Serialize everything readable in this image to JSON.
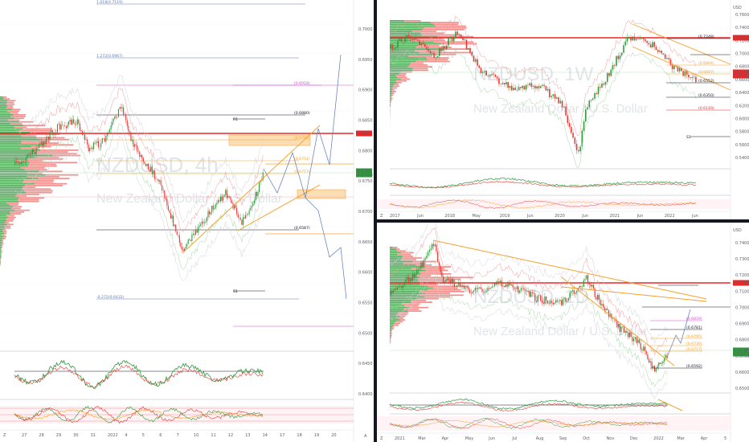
{
  "colors": {
    "bull": "#26a69a",
    "bear": "#ef5350",
    "green_candle": "#2e9a3a",
    "red_candle": "#e53935",
    "orange": "#f7a02c",
    "red_line": "#ef2525",
    "blue_line": "#5b79b8",
    "magenta": "#d44fd4",
    "osc_green": "#2e9a3a",
    "osc_red": "#e53935"
  },
  "chart_data": [
    {
      "type": "candlestick",
      "panel": "left",
      "watermark_symbol": "NZDUSD, 4h",
      "watermark_name": "New Zealand Dollar / U.S. Dollar",
      "price_range": [
        0.635,
        0.7075
      ],
      "price_ticks": [
        "0.7000",
        "0.6950",
        "0.6900",
        "0.6850",
        "0.6800",
        "0.6750",
        "0.6700",
        "0.6650",
        "0.6600",
        "0.6550",
        "0.6500",
        "0.6450",
        "0.6400"
      ],
      "levels": [
        {
          "label": "1.618(0.7119)",
          "price": 0.7119,
          "color": "#5b79b8"
        },
        {
          "label": "1.272(0.6967)",
          "price": 0.6967,
          "color": "#5b79b8"
        },
        {
          "label": "(0.6918)",
          "price": 0.6918,
          "color": "#d44fd4"
        },
        {
          "label": "(0.6880)",
          "price": 0.688,
          "color": "#131722"
        },
        {
          "label": "R1",
          "price": 0.686,
          "color": "#131722"
        },
        {
          "label": "(0.6794)",
          "price": 0.6794,
          "color": "#f7a02c"
        },
        {
          "label": "(0.6751)",
          "price": 0.6751,
          "color": "#f7a02c"
        },
        {
          "label": "(0.6717)",
          "price": 0.6717,
          "color": "#f7a02c"
        },
        {
          "label": "(0.6587)",
          "price": 0.6587,
          "color": "#131722"
        },
        {
          "label": "S1",
          "price": 0.645,
          "color": "#131722"
        },
        {
          "label": "-0.272(0.6432)",
          "price": 0.6432,
          "color": "#5b79b8"
        }
      ],
      "price_tag": {
        "value": "0.6809",
        "color": "#ef2525"
      },
      "last_tag": {
        "value": "0.6738",
        "sub": "2:57:29",
        "color": "#2e9a3a"
      }
    },
    {
      "type": "candlestick",
      "panel": "top-right",
      "watermark_symbol": "NZDUSD, 1W",
      "watermark_name": "New Zealand Dollar / U.S. Dollar",
      "currency": "USD",
      "price_ticks": [
        "0.7600",
        "0.7400",
        "0.7200",
        "0.7000",
        "0.6800",
        "0.6600",
        "0.6400",
        "0.6200",
        "0.6000",
        "0.5800",
        "0.5600",
        "0.5400"
      ],
      "x_ticks": [
        "2017",
        "Jun",
        "2018",
        "May",
        "2019",
        "Jun",
        "2020",
        "Jun",
        "2021",
        "Jun",
        "2022",
        "Jun"
      ],
      "levels": [
        {
          "label": "(0.7248)",
          "color": "#131722"
        },
        {
          "label": "(0.6804)",
          "color": "#f7a02c"
        },
        {
          "label": "(0.6697)",
          "color": "#f7a02c"
        },
        {
          "label": "(0.6552)",
          "color": "#131722"
        },
        {
          "label": "(0.6350)",
          "color": "#131722"
        },
        {
          "label": "(0.6149)",
          "color": "#ef2525"
        },
        {
          "label": "S1",
          "color": "#131722"
        }
      ],
      "price_tag": {
        "value": "0.7243",
        "color": "#ef2525"
      },
      "last_tag": {
        "value": "0.6738",
        "sub": "3 07 29",
        "color": "#ef2525"
      }
    },
    {
      "type": "candlestick",
      "panel": "bottom-right",
      "watermark_symbol": "NZDUSD, 1D",
      "watermark_name": "New Zealand Dollar / U.S. Dollar",
      "currency": "USD",
      "price_ticks": [
        "0.7400",
        "0.7300",
        "0.7200",
        "0.7100",
        "0.7000",
        "0.6900",
        "0.6800",
        "0.6700",
        "0.6600",
        "0.6500"
      ],
      "x_ticks": [
        "2021",
        "Mar",
        "Apr",
        "May",
        "Jun",
        "Jul",
        "Aug",
        "Sep",
        "Oct",
        "Nov",
        "Dec",
        "2022",
        "Mar",
        "Apr",
        "5"
      ],
      "levels": [
        {
          "label": "(0.6839)",
          "color": "#d44fd4"
        },
        {
          "label": "(0.6781)",
          "color": "#131722"
        },
        {
          "label": "(0.6795)",
          "color": "#f7a02c"
        },
        {
          "label": "(0.6730)",
          "color": "#f7a02c"
        },
        {
          "label": "(0.6717)",
          "color": "#f7a02c"
        },
        {
          "label": "(0.6592)",
          "color": "#131722"
        }
      ],
      "price_tag": {
        "value": "0.7149",
        "color": "#ef2525"
      },
      "last_tag": {
        "value": "0.6738",
        "sub": "12 57 29",
        "color": "#2e9a3a"
      }
    }
  ]
}
